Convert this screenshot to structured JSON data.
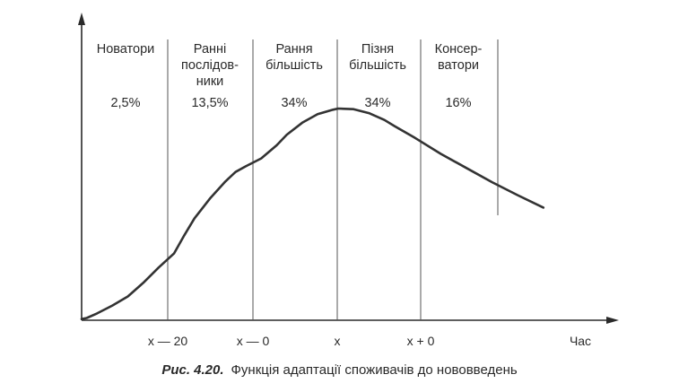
{
  "chart_data": {
    "type": "line",
    "xlabel": "Час",
    "ylabel": "",
    "x_ticks": [
      "x — 20",
      "x — 0",
      "x",
      "x + 0"
    ],
    "segments": [
      {
        "label_lines": [
          "Новатори"
        ],
        "share": "2,5%"
      },
      {
        "label_lines": [
          "Ранні",
          "послідов-",
          "ники"
        ],
        "share": "13,5%"
      },
      {
        "label_lines": [
          "Рання",
          "більшість"
        ],
        "share": "34%"
      },
      {
        "label_lines": [
          "Пізня",
          "більшість"
        ],
        "share": "34%"
      },
      {
        "label_lines": [
          "Консер-",
          "ватори"
        ],
        "share": "16%"
      }
    ],
    "series": [
      {
        "x": [
          0,
          0.1,
          0.3,
          0.6,
          0.9,
          1.0,
          1.2,
          1.5,
          1.8,
          2.0,
          2.2,
          2.5,
          2.8,
          3.0,
          3.2,
          3.5,
          3.8,
          4.0,
          4.3,
          4.6,
          4.9,
          5.0,
          5.3,
          5.6,
          5.9,
          6.1,
          6.5,
          7.0,
          7.5,
          8.0,
          8.5,
          9.0
        ],
        "y": [
          0.02,
          0.04,
          0.12,
          0.26,
          0.42,
          0.5,
          0.66,
          0.93,
          1.18,
          1.5,
          1.8,
          2.15,
          2.45,
          2.62,
          2.72,
          2.86,
          3.09,
          3.28,
          3.49,
          3.64,
          3.72,
          3.74,
          3.73,
          3.66,
          3.54,
          3.43,
          3.22,
          2.94,
          2.69,
          2.44,
          2.21,
          1.99
        ]
      }
    ],
    "xlim": [
      0,
      9.3
    ],
    "ylim": [
      0,
      5.5
    ],
    "grid": false,
    "legend": "none"
  },
  "caption": {
    "number": "Рис. 4.20.",
    "text": "Функція адаптації споживачів до нововведень"
  },
  "colors": {
    "ink": "#2a2a2a",
    "divider": "#555555",
    "background": "#ffffff"
  }
}
